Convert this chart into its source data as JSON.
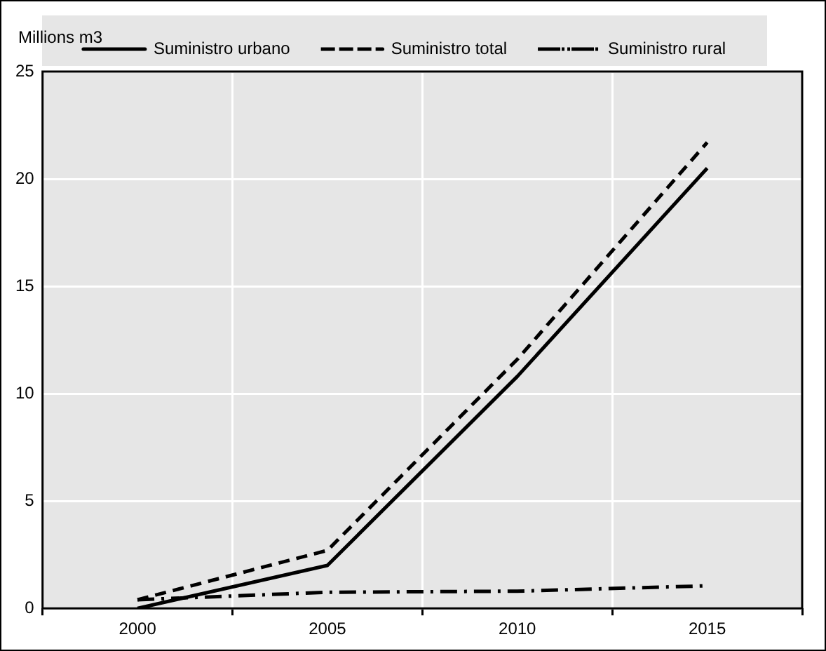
{
  "chart_data": {
    "type": "line",
    "ylabel": "Millions m3",
    "categories": [
      "2000",
      "2005",
      "2010",
      "2015"
    ],
    "series": [
      {
        "name": "Suministro urbano",
        "color": "#000000",
        "line_style": "solid",
        "values": [
          0,
          2.0,
          10.8,
          20.5
        ]
      },
      {
        "name": "Suministro total",
        "color": "#000000",
        "line_style": "dashed",
        "values": [
          0.4,
          2.7,
          11.6,
          21.7
        ]
      },
      {
        "name": "Suministro rural",
        "color": "#000000",
        "line_style": "dashdot",
        "values": [
          0.4,
          0.75,
          0.8,
          1.05
        ]
      }
    ],
    "ylim": [
      0,
      25
    ],
    "yticks": [
      0,
      5,
      10,
      15,
      20,
      25
    ],
    "grid": true,
    "legend": "top",
    "marker": "none"
  }
}
